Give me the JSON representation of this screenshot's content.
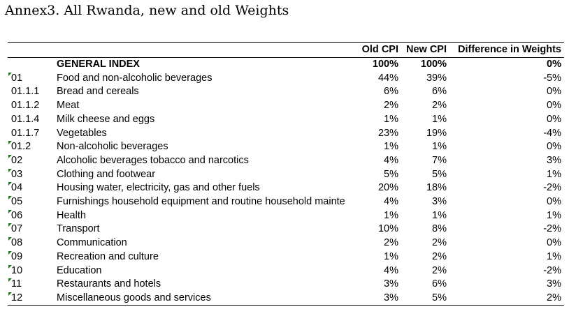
{
  "title": "Annex3. All Rwanda, new and old Weights",
  "headers": {
    "old_cpi": "Old CPI",
    "new_cpi": "New CPI",
    "difference": "Difference in Weights"
  },
  "colors": {
    "marker": "#1f7a1f",
    "text": "#000000"
  },
  "rows": [
    {
      "code": "",
      "description": "GENERAL INDEX",
      "old": "100%",
      "new": "100%",
      "diff": "0%",
      "bold": true,
      "marker": false
    },
    {
      "code": "01",
      "description": "Food and non-alcoholic beverages",
      "old": "44%",
      "new": "39%",
      "diff": "-5%",
      "bold": false,
      "marker": true
    },
    {
      "code": "01.1.1",
      "description": "Bread and cereals",
      "old": "6%",
      "new": "6%",
      "diff": "0%",
      "bold": false,
      "marker": false
    },
    {
      "code": "01.1.2",
      "description": "Meat",
      "old": "2%",
      "new": "2%",
      "diff": "0%",
      "bold": false,
      "marker": false
    },
    {
      "code": "01.1.4",
      "description": "Milk cheese and eggs",
      "old": "1%",
      "new": "1%",
      "diff": "0%",
      "bold": false,
      "marker": false
    },
    {
      "code": "01.1.7",
      "description": "Vegetables",
      "old": "23%",
      "new": "19%",
      "diff": "-4%",
      "bold": false,
      "marker": false
    },
    {
      "code": "01.2",
      "description": "Non-alcoholic beverages",
      "old": "1%",
      "new": "1%",
      "diff": "0%",
      "bold": false,
      "marker": true
    },
    {
      "code": "02",
      "description": "Alcoholic beverages tobacco and narcotics",
      "old": "4%",
      "new": "7%",
      "diff": "3%",
      "bold": false,
      "marker": true
    },
    {
      "code": "03",
      "description": "Clothing and footwear",
      "old": "5%",
      "new": "5%",
      "diff": "1%",
      "bold": false,
      "marker": true
    },
    {
      "code": "04",
      "description": "Housing  water,  electricity,  gas and other fuels",
      "old": "20%",
      "new": "18%",
      "diff": "-2%",
      "bold": false,
      "marker": true
    },
    {
      "code": "05",
      "description": "Furnishings  household equipment and routine household mainte",
      "old": "4%",
      "new": "3%",
      "diff": "0%",
      "bold": false,
      "marker": true
    },
    {
      "code": "06",
      "description": "Health",
      "old": "1%",
      "new": "1%",
      "diff": "1%",
      "bold": false,
      "marker": true
    },
    {
      "code": "07",
      "description": "Transport",
      "old": "10%",
      "new": "8%",
      "diff": "-2%",
      "bold": false,
      "marker": true
    },
    {
      "code": "08",
      "description": "Communication",
      "old": "2%",
      "new": "2%",
      "diff": "0%",
      "bold": false,
      "marker": true
    },
    {
      "code": "09",
      "description": "Recreation and culture",
      "old": "1%",
      "new": "2%",
      "diff": "1%",
      "bold": false,
      "marker": true
    },
    {
      "code": "10",
      "description": "Education",
      "old": "4%",
      "new": "2%",
      "diff": "-2%",
      "bold": false,
      "marker": true
    },
    {
      "code": "11",
      "description": "Restaurants and hotels",
      "old": "3%",
      "new": "6%",
      "diff": "3%",
      "bold": false,
      "marker": true
    },
    {
      "code": "12",
      "description": "Miscellaneous goods and services",
      "old": "3%",
      "new": "5%",
      "diff": "2%",
      "bold": false,
      "marker": true
    }
  ]
}
